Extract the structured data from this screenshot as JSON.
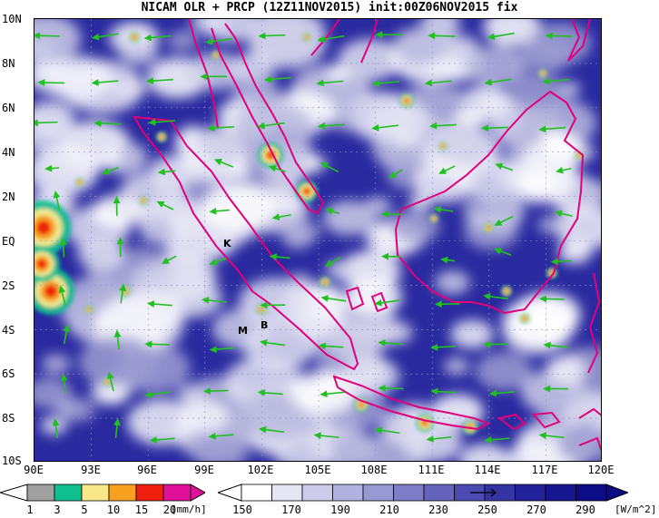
{
  "title": "NICAM OLR + PRCP (12Z11NOV2015) init:00Z06NOV2015 fix",
  "lat_labels": [
    "10N",
    "8N",
    "6N",
    "4N",
    "2N",
    "EQ",
    "2S",
    "4S",
    "6S",
    "8S",
    "10S"
  ],
  "lon_labels": [
    "90E",
    "93E",
    "96E",
    "99E",
    "102E",
    "105E",
    "108E",
    "111E",
    "114E",
    "117E",
    "120E"
  ],
  "stations": [
    {
      "label": "K",
      "lon": 100.3,
      "lat": -0.2
    },
    {
      "label": "M",
      "lon": 101.3,
      "lat": -4.0
    },
    {
      "label": "B",
      "lon": 102.2,
      "lat": -3.8
    }
  ],
  "precip_colorbar": {
    "labels": [
      "1",
      "3",
      "5",
      "10",
      "15",
      "20"
    ],
    "unit": "[mm/h]",
    "colors": [
      "#a0a0a0",
      "#10c090",
      "#f8e88a",
      "#f8a020",
      "#f02010",
      "#e0109a"
    ]
  },
  "olr_colorbar": {
    "labels": [
      "150",
      "170",
      "190",
      "210",
      "230",
      "250",
      "270",
      "290"
    ],
    "unit": "[W/m^2]",
    "colors": [
      "#ffffff",
      "#e6e6f4",
      "#ccccea",
      "#b2b2e0",
      "#9898d2",
      "#7e7ec8",
      "#6464bc",
      "#4a4ab0",
      "#3434a4",
      "#22229a",
      "#161690",
      "#0c0c86"
    ]
  },
  "colors": {
    "coastline": "#e0007a",
    "wind_vector": "#20c020",
    "background": "#2a2aa0"
  }
}
